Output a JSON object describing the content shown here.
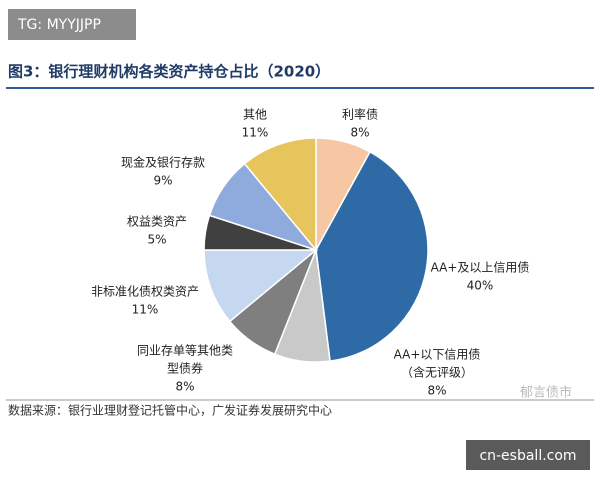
{
  "chart_data": {
    "type": "pie",
    "title": "图3：银行理财机构各类资产持仓占比（2020）",
    "source": "数据来源：银行业理财登记托管中心，广发证券发展研究中心",
    "categories": [
      [
        "利率债"
      ],
      [
        "AA+及以上信用债"
      ],
      [
        "AA+以下信用债",
        "（含无评级）"
      ],
      [
        "同业存单等其他类",
        "型债券"
      ],
      [
        "非标准化债权类资产"
      ],
      [
        "权益类资产"
      ],
      [
        "现金及银行存款"
      ],
      [
        "其他"
      ]
    ],
    "values": [
      8,
      40,
      8,
      8,
      11,
      5,
      9,
      11
    ],
    "value_labels": [
      "8%",
      "40%",
      "8%",
      "8%",
      "11%",
      "5%",
      "9%",
      "11%"
    ],
    "colors": [
      "#f7c6a3",
      "#2e6aa6",
      "#c9c9c9",
      "#7f7f7f",
      "#c5d8ef",
      "#404040",
      "#8faadc",
      "#e7c45c"
    ]
  },
  "overlays": {
    "top_tag": "TG: MYYJJPP",
    "watermark": "郁言债市",
    "bottom_tag": "cn-esball.com"
  }
}
